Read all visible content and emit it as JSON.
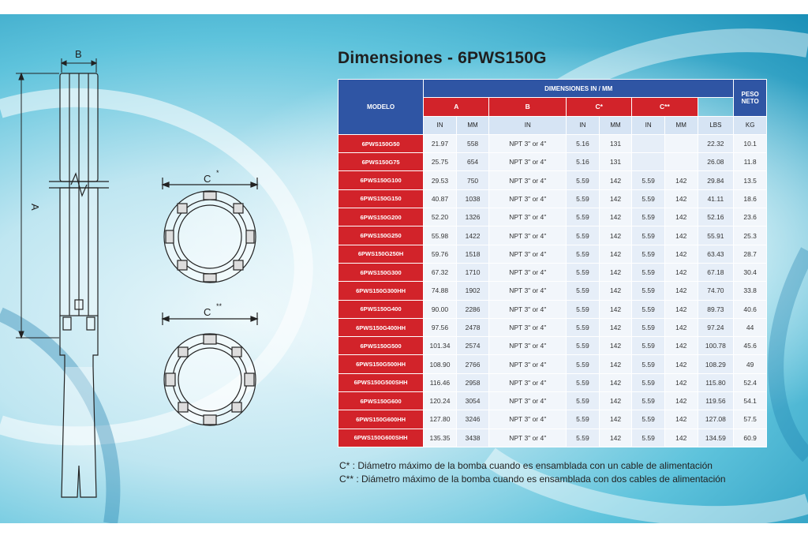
{
  "title": "Dimensiones - 6PWS150G",
  "drawing": {
    "label_b": "B",
    "label_a": "A",
    "label_c1": "C",
    "label_c1_sup": "*",
    "label_c2": "C",
    "label_c2_sup": "**"
  },
  "table": {
    "header_modelo": "MODELO",
    "header_dimensiones": "DIMENSIONES IN / MM",
    "header_peso": "PESO NETO",
    "col_a": "A",
    "col_b": "B",
    "col_c1": "C*",
    "col_c2": "C**",
    "units": [
      "IN",
      "MM",
      "IN",
      "IN",
      "MM",
      "IN",
      "MM",
      "LBS",
      "KG"
    ],
    "rows": [
      [
        "6PWS150G50",
        "21.97",
        "558",
        "NPT 3\" or 4\"",
        "5.16",
        "131",
        "",
        "",
        "22.32",
        "10.1"
      ],
      [
        "6PWS150G75",
        "25.75",
        "654",
        "NPT 3\" or 4\"",
        "5.16",
        "131",
        "",
        "",
        "26.08",
        "11.8"
      ],
      [
        "6PWS150G100",
        "29.53",
        "750",
        "NPT 3\" or 4\"",
        "5.59",
        "142",
        "5.59",
        "142",
        "29.84",
        "13.5"
      ],
      [
        "6PWS150G150",
        "40.87",
        "1038",
        "NPT 3\" or 4\"",
        "5.59",
        "142",
        "5.59",
        "142",
        "41.11",
        "18.6"
      ],
      [
        "6PWS150G200",
        "52.20",
        "1326",
        "NPT 3\" or 4\"",
        "5.59",
        "142",
        "5.59",
        "142",
        "52.16",
        "23.6"
      ],
      [
        "6PWS150G250",
        "55.98",
        "1422",
        "NPT 3\" or 4\"",
        "5.59",
        "142",
        "5.59",
        "142",
        "55.91",
        "25.3"
      ],
      [
        "6PWS150G250H",
        "59.76",
        "1518",
        "NPT 3\" or 4\"",
        "5.59",
        "142",
        "5.59",
        "142",
        "63.43",
        "28.7"
      ],
      [
        "6PWS150G300",
        "67.32",
        "1710",
        "NPT 3\" or 4\"",
        "5.59",
        "142",
        "5.59",
        "142",
        "67.18",
        "30.4"
      ],
      [
        "6PWS150G300HH",
        "74.88",
        "1902",
        "NPT 3\" or 4\"",
        "5.59",
        "142",
        "5.59",
        "142",
        "74.70",
        "33.8"
      ],
      [
        "6PWS150G400",
        "90.00",
        "2286",
        "NPT 3\" or 4\"",
        "5.59",
        "142",
        "5.59",
        "142",
        "89.73",
        "40.6"
      ],
      [
        "6PWS150G400HH",
        "97.56",
        "2478",
        "NPT 3\" or 4\"",
        "5.59",
        "142",
        "5.59",
        "142",
        "97.24",
        "44"
      ],
      [
        "6PWS150G500",
        "101.34",
        "2574",
        "NPT 3\" or 4\"",
        "5.59",
        "142",
        "5.59",
        "142",
        "100.78",
        "45.6"
      ],
      [
        "6PWS150G500HH",
        "108.90",
        "2766",
        "NPT 3\" or 4\"",
        "5.59",
        "142",
        "5.59",
        "142",
        "108.29",
        "49"
      ],
      [
        "6PWS150G500SHH",
        "116.46",
        "2958",
        "NPT 3\" or 4\"",
        "5.59",
        "142",
        "5.59",
        "142",
        "115.80",
        "52.4"
      ],
      [
        "6PWS150G600",
        "120.24",
        "3054",
        "NPT 3\" or 4\"",
        "5.59",
        "142",
        "5.59",
        "142",
        "119.56",
        "54.1"
      ],
      [
        "6PWS150G600HH",
        "127.80",
        "3246",
        "NPT 3\" or 4\"",
        "5.59",
        "142",
        "5.59",
        "142",
        "127.08",
        "57.5"
      ],
      [
        "6PWS150G600SHH",
        "135.35",
        "3438",
        "NPT 3\" or 4\"",
        "5.59",
        "142",
        "5.59",
        "142",
        "134.59",
        "60.9"
      ]
    ]
  },
  "notes": [
    "C* : Diámetro máximo de la bomba cuando es ensamblada con un cable de alimentación",
    "C** : Diámetro máximo de la bomba cuando es ensamblada con dos cables de alimentación"
  ],
  "colors": {
    "header_blue": "#2f55a4",
    "model_red": "#d2232a",
    "unit_row": "#d6e4f4"
  }
}
